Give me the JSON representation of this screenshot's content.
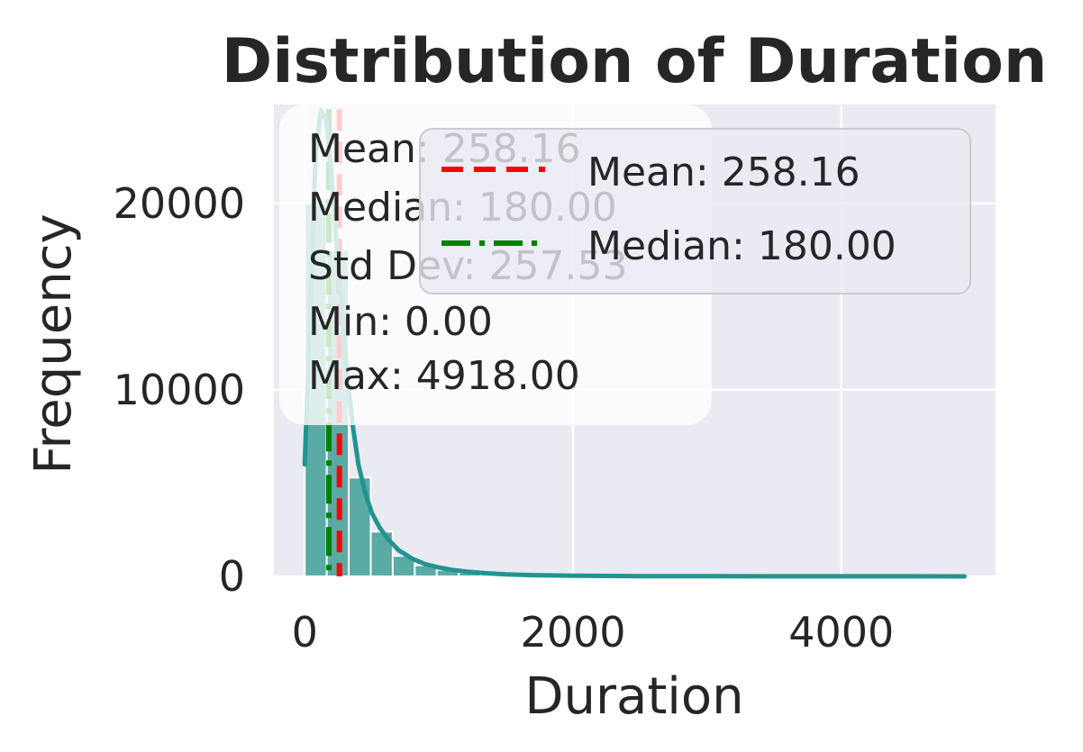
{
  "chart_data": {
    "type": "bar",
    "title": "Distribution of Duration",
    "xlabel": "Duration",
    "ylabel": "Frequency",
    "xlim": [
      -230,
      5150
    ],
    "ylim": [
      0,
      25300
    ],
    "x_ticks": [
      0,
      2000,
      4000
    ],
    "y_ticks": [
      0,
      10000,
      20000
    ],
    "grid": true,
    "bin_width": 164,
    "bins": [
      {
        "x0": 0,
        "x1": 164,
        "count": 20000
      },
      {
        "x0": 164,
        "x1": 328,
        "count": 17500
      },
      {
        "x0": 328,
        "x1": 492,
        "count": 5300
      },
      {
        "x0": 492,
        "x1": 656,
        "count": 2400
      },
      {
        "x0": 656,
        "x1": 820,
        "count": 1100
      },
      {
        "x0": 820,
        "x1": 984,
        "count": 600
      },
      {
        "x0": 984,
        "x1": 1148,
        "count": 350
      },
      {
        "x0": 1148,
        "x1": 1312,
        "count": 200
      },
      {
        "x0": 1312,
        "x1": 1476,
        "count": 120
      },
      {
        "x0": 1476,
        "x1": 1640,
        "count": 80
      },
      {
        "x0": 1640,
        "x1": 1804,
        "count": 50
      },
      {
        "x0": 1804,
        "x1": 1968,
        "count": 30
      },
      {
        "x0": 1968,
        "x1": 2132,
        "count": 20
      },
      {
        "x0": 2132,
        "x1": 2296,
        "count": 15
      },
      {
        "x0": 2296,
        "x1": 2460,
        "count": 10
      },
      {
        "x0": 2460,
        "x1": 2624,
        "count": 8
      },
      {
        "x0": 2624,
        "x1": 2788,
        "count": 6
      },
      {
        "x0": 2788,
        "x1": 2952,
        "count": 4
      },
      {
        "x0": 2952,
        "x1": 3116,
        "count": 3
      },
      {
        "x0": 3116,
        "x1": 3280,
        "count": 2
      },
      {
        "x0": 3280,
        "x1": 3444,
        "count": 2
      },
      {
        "x0": 3444,
        "x1": 3608,
        "count": 1
      },
      {
        "x0": 3608,
        "x1": 3772,
        "count": 1
      },
      {
        "x0": 3772,
        "x1": 3936,
        "count": 1
      },
      {
        "x0": 3936,
        "x1": 4100,
        "count": 1
      },
      {
        "x0": 4100,
        "x1": 4264,
        "count": 1
      },
      {
        "x0": 4264,
        "x1": 4428,
        "count": 0
      },
      {
        "x0": 4428,
        "x1": 4592,
        "count": 0
      },
      {
        "x0": 4592,
        "x1": 4756,
        "count": 0
      },
      {
        "x0": 4756,
        "x1": 4920,
        "count": 1
      }
    ],
    "kde": {
      "x": [
        0,
        40,
        80,
        120,
        160,
        200,
        240,
        280,
        320,
        360,
        400,
        450,
        500,
        560,
        620,
        700,
        800,
        900,
        1000,
        1100,
        1200,
        1350,
        1500,
        1700,
        2000,
        2500,
        3000,
        3500,
        4000,
        4500,
        4918
      ],
      "y": [
        6000,
        14000,
        22500,
        25000,
        24500,
        21500,
        17500,
        14000,
        10500,
        8000,
        6000,
        4500,
        3400,
        2600,
        2000,
        1400,
        950,
        650,
        480,
        350,
        260,
        170,
        110,
        70,
        35,
        15,
        8,
        5,
        4,
        3,
        2
      ]
    },
    "mean": {
      "value": 258.16,
      "label": "Mean: 258.16"
    },
    "median": {
      "value": 180.0,
      "label": "Median: 180.00"
    },
    "stats_lines": [
      "Mean: 258.16",
      "Median: 180.00",
      "Std Dev: 257.53",
      "Min: 0.00",
      "Max: 4918.00"
    ],
    "legend": [
      {
        "label": "Mean: 258.16",
        "style": "dashed",
        "color": "#ff0000"
      },
      {
        "label": "Median: 180.00",
        "style": "dashdot",
        "color": "#008000"
      }
    ],
    "legend_position": "upper right",
    "stats_box_position": "upper left",
    "colors": {
      "background": "#eaeaf2",
      "bar": "#5aaaa5",
      "kde": "#229490",
      "mean": "#ff0000",
      "median": "#008000",
      "grid": "#ffffff"
    }
  }
}
